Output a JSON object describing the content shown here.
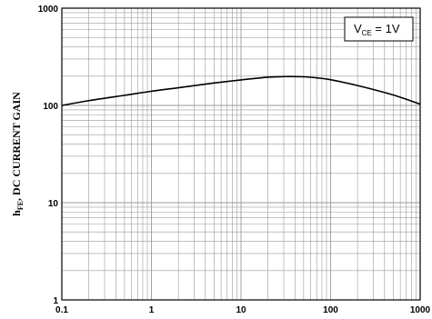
{
  "chart_data": {
    "type": "line",
    "xscale": "log",
    "yscale": "log",
    "xlim": [
      0.1,
      1000
    ],
    "ylim": [
      1,
      1000
    ],
    "grid": true,
    "ylabel": {
      "main": "h",
      "sub": "FE",
      "rest": ", DC CURRENT GAIN"
    },
    "xlabel": "",
    "x_tick_labels": [
      "0.1",
      "1",
      "10",
      "100",
      "1000"
    ],
    "y_tick_labels": [
      "1",
      "10",
      "100",
      "1000"
    ],
    "legend": {
      "prefix": "V",
      "sub": "CE",
      "suffix": " = 1V",
      "placement": "top-right"
    },
    "series": [
      {
        "x": [
          0.1,
          0.2,
          0.5,
          1,
          2,
          5,
          10,
          20,
          30,
          50,
          70,
          100,
          200,
          500,
          1000
        ],
        "y": [
          100,
          112,
          127,
          140,
          152,
          170,
          183,
          195,
          198,
          197,
          192,
          184,
          160,
          128,
          103
        ]
      }
    ],
    "line_color": "#000000",
    "grid_color": "#9a9a9a"
  }
}
